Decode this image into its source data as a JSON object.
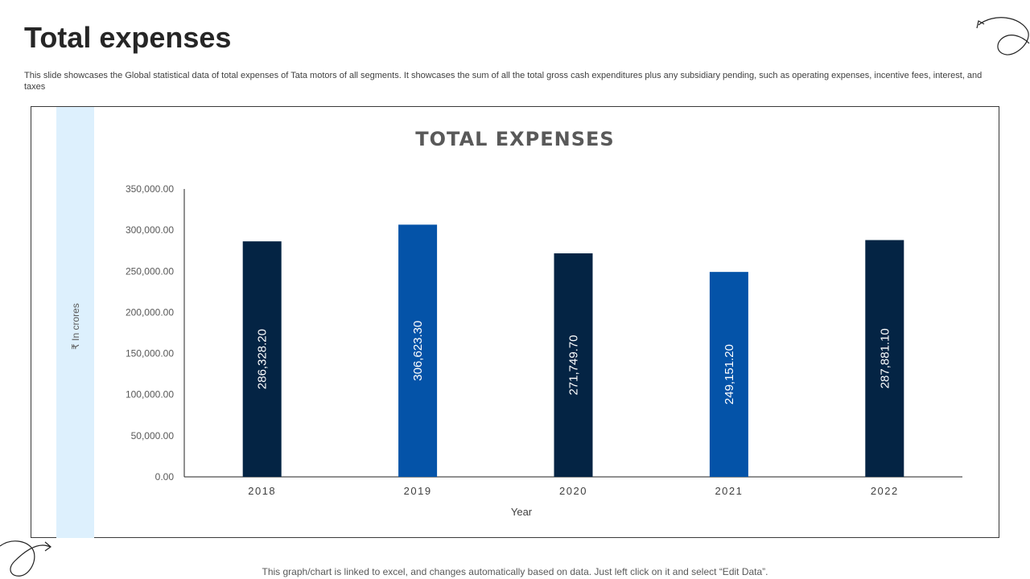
{
  "slide": {
    "title": "Total expenses",
    "description": "This slide showcases the Global statistical data of total expenses of Tata motors of all segments. It showcases the sum of all the total gross cash expenditures plus any subsidiary pending, such as operating expenses, incentive fees, interest, and taxes",
    "footer_note": "This graph/chart is linked to excel, and changes automatically based on data. Just left click on it and select “Edit Data”."
  },
  "colors": {
    "dark_bar": "#042444",
    "blue_bar": "#0453a8",
    "strip": "#ddf0fd",
    "axis": "#222222"
  },
  "chart_data": {
    "type": "bar",
    "title": "TOTAL EXPENSES",
    "xlabel": "Year",
    "ylabel": "₹ In crores",
    "categories": [
      "2018",
      "2019",
      "2020",
      "2021",
      "2022"
    ],
    "values": [
      286328.2,
      306623.3,
      271749.7,
      249151.2,
      287881.1
    ],
    "value_labels": [
      "286,328.20",
      "306,623.30",
      "271,749.70",
      "249,151.20",
      "287,881.10"
    ],
    "bar_colors": [
      "#042444",
      "#0453a8",
      "#042444",
      "#0453a8",
      "#042444"
    ],
    "ylim": [
      0,
      350000
    ],
    "yticks": [
      0,
      50000,
      100000,
      150000,
      200000,
      250000,
      300000,
      350000
    ],
    "ytick_labels": [
      "0.00",
      "50,000.00",
      "100,000.00",
      "150,000.00",
      "200,000.00",
      "250,000.00",
      "300,000.00",
      "350,000.00"
    ],
    "grid": false,
    "legend": "none"
  }
}
